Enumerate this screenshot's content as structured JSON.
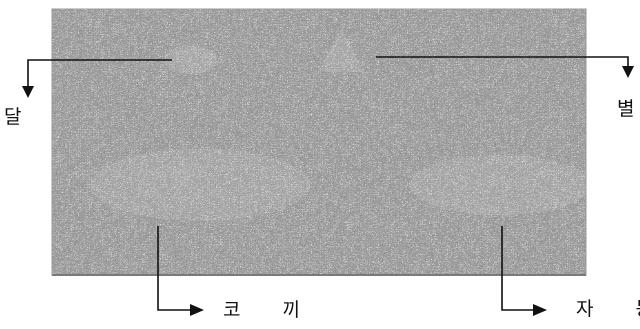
{
  "figure": {
    "description_image": "noise-pattern-image",
    "colors": {
      "noise_background": "#c9c9c9",
      "noise_dark": "#3a3a3a",
      "noise_light": "#f2f2f2",
      "border": "#9a9a9a",
      "arrow": "#111111"
    }
  },
  "labels": {
    "moon": "달",
    "star": "별",
    "elephant": "코 끼",
    "car": "자 동"
  },
  "arrows": [
    {
      "name": "moon-arrow",
      "icon": "arrow-down-icon"
    },
    {
      "name": "star-arrow",
      "icon": "arrow-down-icon"
    },
    {
      "name": "elephant-arrow",
      "icon": "arrow-right-icon"
    },
    {
      "name": "car-arrow",
      "icon": "arrow-right-icon"
    }
  ]
}
